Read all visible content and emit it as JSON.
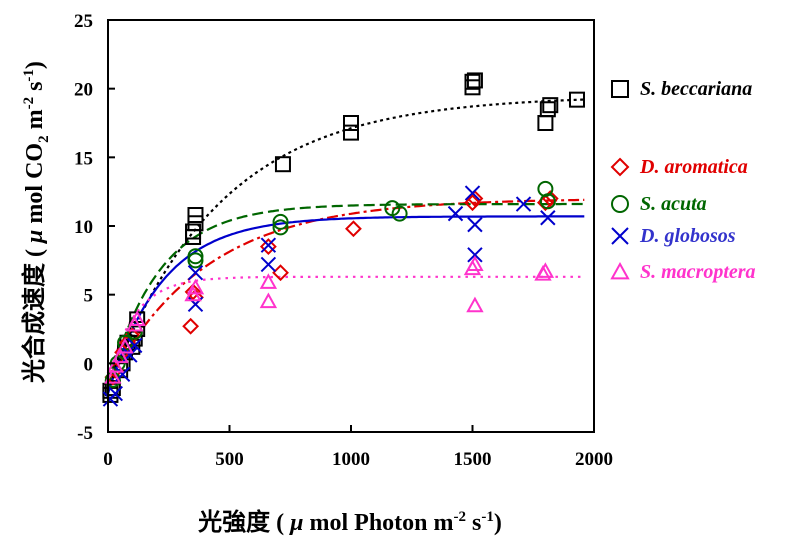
{
  "chart_data": {
    "type": "scatter",
    "title": "",
    "xlabel": "光強度 ( μ mol Photon m-2 s-1)",
    "ylabel": "光合成速度 ( μ mol CO2 m-2 s-1)",
    "xlabel_parts": {
      "main": "光強度 ( ",
      "mu": "μ",
      "rest": " mol Photon m",
      "sup1": "-2",
      "mid": " s",
      "sup2": "-1",
      "end": ")"
    },
    "ylabel_parts": {
      "main": "光合成速度 ( ",
      "mu": "μ",
      "rest": " mol CO",
      "sub": "2",
      "mid": " m",
      "sup1": "-2",
      "mid2": " s",
      "sup2": "-1",
      "end": ")"
    },
    "xlim": [
      0,
      2000
    ],
    "ylim": [
      -5,
      25
    ],
    "xticks": [
      "0",
      "500",
      "1000",
      "1500",
      "2000"
    ],
    "yticks": [
      "-5",
      "0",
      "5",
      "10",
      "15",
      "20",
      "25"
    ],
    "grid": false,
    "legend_position": "right",
    "series": [
      {
        "name": "S. beccariana",
        "marker": "square",
        "color": "#000000",
        "line_style": "dotted-dense",
        "points": [
          [
            10,
            -2.3
          ],
          [
            10,
            -2.0
          ],
          [
            20,
            -1.8
          ],
          [
            50,
            -0.5
          ],
          [
            60,
            0.0
          ],
          [
            70,
            0.8
          ],
          [
            80,
            1.5
          ],
          [
            100,
            1.2
          ],
          [
            110,
            1.8
          ],
          [
            120,
            2.5
          ],
          [
            120,
            3.2
          ],
          [
            350,
            9.2
          ],
          [
            350,
            9.6
          ],
          [
            360,
            10.2
          ],
          [
            360,
            10.8
          ],
          [
            720,
            14.5
          ],
          [
            1000,
            16.8
          ],
          [
            1000,
            17.5
          ],
          [
            1500,
            20.1
          ],
          [
            1500,
            20.5
          ],
          [
            1510,
            20.6
          ],
          [
            1800,
            17.5
          ],
          [
            1810,
            18.5
          ],
          [
            1820,
            18.8
          ],
          [
            1930,
            19.2
          ]
        ],
        "curve": {
          "pmax": 19.5,
          "rd": -2.0,
          "k": 0.0022
        }
      },
      {
        "name": "D. aromatica",
        "marker": "diamond",
        "color": "#e00000",
        "line_style": "dash-dot",
        "points": [
          [
            20,
            -1.0
          ],
          [
            30,
            -0.5
          ],
          [
            60,
            0.8
          ],
          [
            80,
            1.5
          ],
          [
            100,
            2.0
          ],
          [
            340,
            2.7
          ],
          [
            350,
            5.2
          ],
          [
            360,
            4.8
          ],
          [
            660,
            8.5
          ],
          [
            710,
            6.6
          ],
          [
            1010,
            9.8
          ],
          [
            1500,
            11.7
          ],
          [
            1510,
            12.0
          ],
          [
            1800,
            11.7
          ],
          [
            1820,
            12.0
          ]
        ],
        "curve": {
          "pmax": 12.0,
          "rd": -1.5,
          "k": 0.0025
        }
      },
      {
        "name": "S. acuta",
        "marker": "circle",
        "color": "#006600",
        "line_style": "dashed",
        "points": [
          [
            20,
            -1.2
          ],
          [
            40,
            0.0
          ],
          [
            70,
            1.5
          ],
          [
            110,
            2.3
          ],
          [
            360,
            7.8
          ],
          [
            360,
            7.5
          ],
          [
            710,
            10.3
          ],
          [
            710,
            9.9
          ],
          [
            1170,
            11.3
          ],
          [
            1200,
            10.9
          ],
          [
            1800,
            12.7
          ],
          [
            1810,
            11.8
          ]
        ],
        "curve": {
          "pmax": 11.6,
          "rd": -1.8,
          "k": 0.0048
        }
      },
      {
        "name": "D. globosos",
        "marker": "cross",
        "color": "#0000cc",
        "line_style": "solid",
        "points": [
          [
            10,
            -2.6
          ],
          [
            30,
            -2.2
          ],
          [
            60,
            -0.8
          ],
          [
            90,
            0.6
          ],
          [
            110,
            1.3
          ],
          [
            360,
            4.3
          ],
          [
            360,
            6.6
          ],
          [
            660,
            7.2
          ],
          [
            660,
            8.6
          ],
          [
            1430,
            10.9
          ],
          [
            1500,
            12.4
          ],
          [
            1510,
            10.1
          ],
          [
            1510,
            7.9
          ],
          [
            1710,
            11.6
          ],
          [
            1810,
            10.6
          ]
        ],
        "curve": {
          "pmax": 10.7,
          "rd": -2.2,
          "k": 0.0045
        }
      },
      {
        "name": "S. macroptera",
        "marker": "triangle",
        "color": "#ff33cc",
        "line_style": "dotted",
        "points": [
          [
            20,
            -1.0
          ],
          [
            30,
            -0.2
          ],
          [
            50,
            0.5
          ],
          [
            70,
            1.2
          ],
          [
            110,
            2.8
          ],
          [
            120,
            3.2
          ],
          [
            350,
            5.0
          ],
          [
            360,
            5.5
          ],
          [
            660,
            5.9
          ],
          [
            660,
            4.5
          ],
          [
            1500,
            6.9
          ],
          [
            1510,
            7.2
          ],
          [
            1510,
            4.2
          ],
          [
            1790,
            6.5
          ],
          [
            1800,
            6.7
          ]
        ],
        "curve": {
          "pmax": 6.3,
          "rd": -1.2,
          "k": 0.009
        }
      }
    ]
  }
}
